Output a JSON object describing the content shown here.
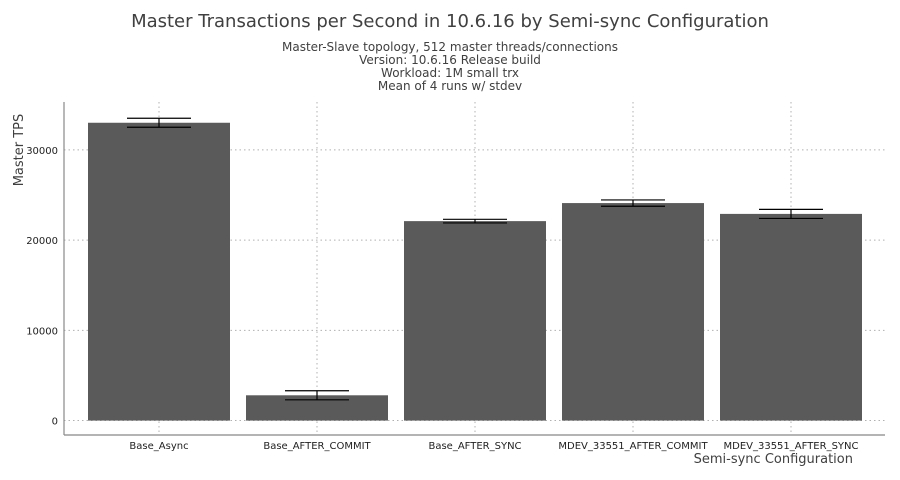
{
  "chart_data": {
    "type": "bar",
    "title": "Master Transactions per Second in 10.6.16 by Semi-sync Configuration",
    "subtitle_lines": [
      "Master-Slave topology, 512 master threads/connections",
      "Version: 10.6.16 Release build",
      "Workload: 1M small trx",
      "Mean of 4 runs w/ stdev"
    ],
    "xlabel": "Semi-sync Configuration",
    "ylabel": "Master TPS",
    "categories": [
      "Base_Async",
      "Base_AFTER_COMMIT",
      "Base_AFTER_SYNC",
      "MDEV_33551_AFTER_COMMIT",
      "MDEV_33551_AFTER_SYNC"
    ],
    "values": [
      33000,
      2800,
      22100,
      24100,
      22900
    ],
    "errors": [
      500,
      500,
      200,
      350,
      500
    ],
    "yticks": [
      0,
      10000,
      20000,
      30000
    ],
    "ylim": [
      -1600,
      35300
    ],
    "grid": true,
    "bar_color": "#5a5a5a",
    "error_color": "#000000",
    "axis_color": "#888888",
    "grid_color": "#b0b0b0"
  }
}
